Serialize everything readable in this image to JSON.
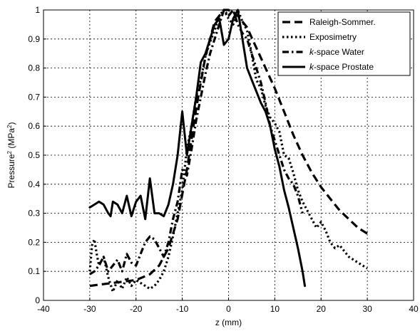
{
  "chart_data": {
    "type": "line",
    "title": "",
    "xlabel": "z (mm)",
    "ylabel_main": "Pressure",
    "ylabel_sup": "2",
    "ylabel_unit_open": " (MPa",
    "ylabel_unit_sup": "2",
    "ylabel_unit_close": ")",
    "xlim": [
      -40,
      40
    ],
    "ylim": [
      0,
      1
    ],
    "xticks": [
      -40,
      -30,
      -20,
      -10,
      0,
      10,
      20,
      30,
      40
    ],
    "yticks": [
      0,
      0.1,
      0.2,
      0.3,
      0.4,
      0.5,
      0.6,
      0.7,
      0.8,
      0.9,
      1
    ],
    "ytick_labels": [
      "0",
      "0.1",
      "0.2",
      "0.3",
      "0.4",
      "0.5",
      "0.6",
      "0.7",
      "0.8",
      "0.9",
      "1"
    ],
    "xtick_labels": [
      "-40",
      "-30",
      "-20",
      "-10",
      "0",
      "10",
      "20",
      "30",
      "40"
    ],
    "grid": true,
    "legend_position": "top-right",
    "series": [
      {
        "name": "Raleigh-Sommer.",
        "name_italic": "",
        "name_rest": "Raleigh-Sommer.",
        "style": "dashed",
        "x": [
          -30,
          -25,
          -20,
          -17,
          -15,
          -13,
          -11,
          -9,
          -7,
          -5,
          -3,
          -1,
          0,
          2,
          4,
          6,
          8,
          10,
          12,
          14,
          16,
          18,
          20,
          22,
          24,
          26,
          28,
          30
        ],
        "y": [
          0.05,
          0.06,
          0.07,
          0.09,
          0.12,
          0.18,
          0.28,
          0.45,
          0.66,
          0.84,
          0.96,
          1.0,
          1.0,
          0.98,
          0.94,
          0.87,
          0.8,
          0.73,
          0.65,
          0.57,
          0.5,
          0.44,
          0.39,
          0.35,
          0.31,
          0.28,
          0.25,
          0.23
        ]
      },
      {
        "name": "Exposimetry",
        "name_italic": "",
        "name_rest": "Exposimetry",
        "style": "dotted",
        "x": [
          -30,
          -29.5,
          -29,
          -28.5,
          -28,
          -27,
          -26,
          -25,
          -24,
          -23,
          -22,
          -21,
          -20,
          -19,
          -18,
          -17,
          -16,
          -15,
          -14,
          -13,
          -12,
          -11,
          -10,
          -9,
          -8,
          -7,
          -6,
          -5,
          -4,
          -3,
          -2,
          -1,
          0,
          1,
          2,
          3,
          4,
          5,
          6,
          7,
          8,
          9,
          10,
          11,
          12,
          13,
          14,
          15,
          16,
          17,
          18,
          19,
          20,
          21,
          22,
          23,
          24,
          25,
          26,
          27,
          28,
          29,
          30
        ],
        "y": [
          0.1,
          0.19,
          0.21,
          0.16,
          0.12,
          0.15,
          0.08,
          0.03,
          0.07,
          0.04,
          0.08,
          0.05,
          0.07,
          0.06,
          0.05,
          0.04,
          0.05,
          0.07,
          0.1,
          0.15,
          0.22,
          0.3,
          0.38,
          0.52,
          0.6,
          0.7,
          0.76,
          0.84,
          0.89,
          0.93,
          0.98,
          1.0,
          0.97,
          0.95,
          1.0,
          0.96,
          0.93,
          0.85,
          0.76,
          0.73,
          0.67,
          0.63,
          0.61,
          0.58,
          0.5,
          0.49,
          0.44,
          0.38,
          0.34,
          0.31,
          0.28,
          0.25,
          0.27,
          0.24,
          0.2,
          0.18,
          0.19,
          0.17,
          0.15,
          0.14,
          0.13,
          0.12,
          0.11
        ]
      },
      {
        "name": "k-space Water",
        "name_italic": "k",
        "name_rest": "-space Water",
        "style": "dashdot",
        "x": [
          -30,
          -29,
          -28,
          -27,
          -26,
          -25,
          -24,
          -23,
          -22,
          -21,
          -20,
          -19,
          -18,
          -17,
          -16,
          -15,
          -14,
          -13,
          -12,
          -11,
          -10,
          -9,
          -8,
          -7,
          -6,
          -5,
          -4,
          -3,
          -2,
          -1,
          0,
          1,
          2,
          3,
          4,
          5,
          6,
          7,
          8,
          9,
          10,
          11,
          12,
          13,
          14,
          15,
          16
        ],
        "y": [
          0.09,
          0.1,
          0.12,
          0.15,
          0.1,
          0.12,
          0.14,
          0.1,
          0.16,
          0.13,
          0.12,
          0.16,
          0.2,
          0.22,
          0.21,
          0.18,
          0.15,
          0.2,
          0.28,
          0.34,
          0.45,
          0.43,
          0.52,
          0.62,
          0.7,
          0.78,
          0.85,
          0.9,
          0.95,
          1.0,
          0.98,
          1.0,
          0.95,
          0.92,
          0.9,
          0.85,
          0.8,
          0.75,
          0.68,
          0.6,
          0.55,
          0.5,
          0.45,
          0.42,
          0.4,
          0.36,
          0.3
        ]
      },
      {
        "name": "k-space Prostate",
        "name_italic": "k",
        "name_rest": "-space Prostate",
        "style": "solid",
        "x": [
          -30,
          -29,
          -28,
          -27,
          -26,
          -25.5,
          -25,
          -24,
          -23,
          -22,
          -21,
          -20,
          -19,
          -18,
          -17,
          -16,
          -15,
          -14,
          -13,
          -12,
          -11,
          -10,
          -9,
          -8,
          -7,
          -6,
          -5,
          -4,
          -3,
          -2,
          -1,
          0,
          1,
          2,
          3,
          4,
          5,
          6,
          7,
          8,
          9,
          10,
          11,
          12,
          13,
          14,
          15,
          16,
          16.5
        ],
        "y": [
          0.32,
          0.33,
          0.34,
          0.33,
          0.3,
          0.29,
          0.34,
          0.33,
          0.3,
          0.36,
          0.29,
          0.34,
          0.36,
          0.28,
          0.42,
          0.3,
          0.3,
          0.29,
          0.33,
          0.4,
          0.5,
          0.65,
          0.5,
          0.6,
          0.7,
          0.82,
          0.85,
          0.9,
          0.95,
          0.97,
          0.88,
          0.9,
          0.97,
          1.0,
          0.9,
          0.8,
          0.76,
          0.72,
          0.68,
          0.65,
          0.6,
          0.52,
          0.46,
          0.38,
          0.32,
          0.25,
          0.18,
          0.1,
          0.05
        ]
      }
    ]
  }
}
